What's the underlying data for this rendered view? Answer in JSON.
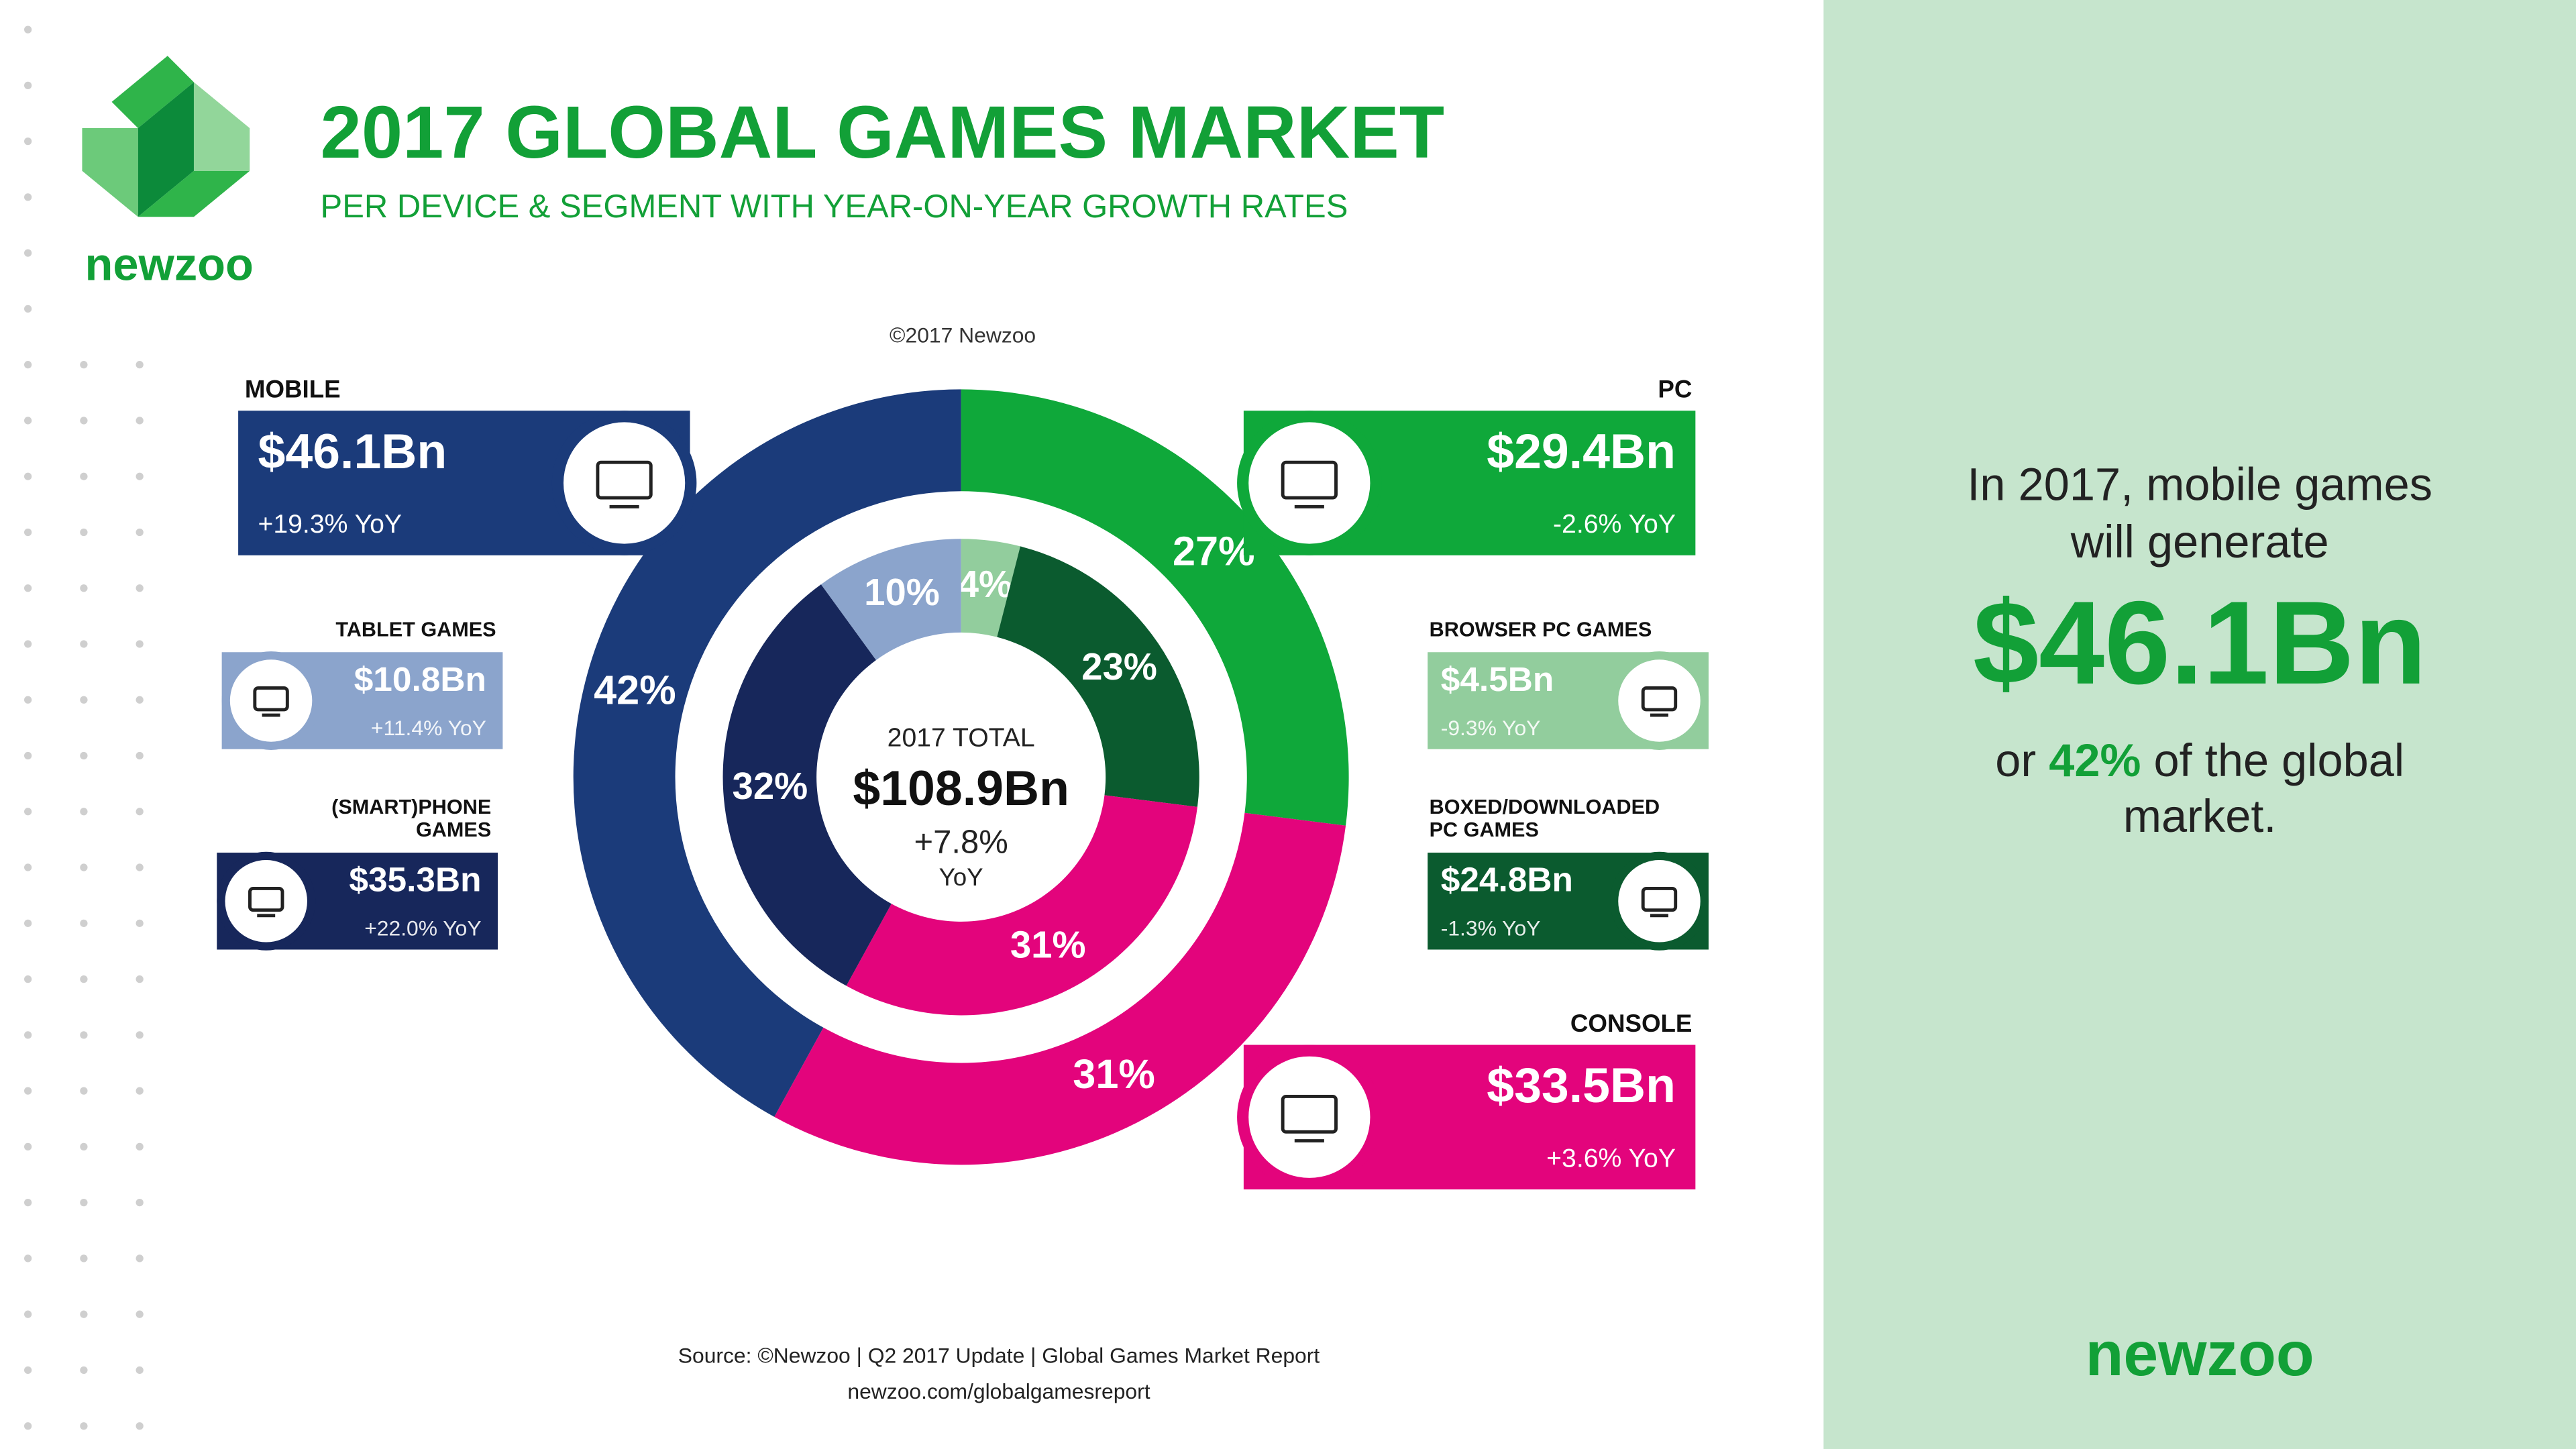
{
  "logo": "newzoo",
  "chart_data": {
    "type": "donut",
    "title": "2017 GLOBAL GAMES MARKET",
    "subtitle": "PER DEVICE & SEGMENT WITH YEAR-ON-YEAR GROWTH RATES",
    "copyright": "©2017 Newzoo",
    "center": {
      "label": "2017 TOTAL",
      "amount": "$108.9Bn",
      "growth": "+7.8%",
      "unit": "YoY"
    },
    "rings": [
      {
        "categories": [
          "PC",
          "CONSOLE",
          "MOBILE"
        ],
        "values": [
          27,
          31,
          42
        ],
        "value_labels": [
          "27%",
          "31%",
          "42%"
        ],
        "colors": [
          "#0fa83a",
          "#e3047c",
          "#1b3b7a"
        ],
        "amounts": [
          "$29.4Bn",
          "$33.5Bn",
          "$46.1Bn"
        ],
        "growth": [
          "-2.6% YoY",
          "+3.6% YoY",
          "+19.3% YoY"
        ]
      },
      {
        "categories": [
          "BROWSER PC GAMES",
          [
            "BOXED/DOWNLOADED",
            "PC GAMES"
          ],
          null,
          [
            " (SMART)PHONE",
            "GAMES"
          ],
          "TABLET GAMES"
        ],
        "values": [
          4,
          23,
          31,
          32,
          10
        ],
        "value_labels": [
          "4%",
          "23%",
          "31%",
          "32%",
          "10%"
        ],
        "colors": [
          "#92cd9d",
          "#0b5b2f",
          "#e3047c",
          "#17275b",
          "#8ba4cc"
        ],
        "amounts": [
          "$4.5Bn",
          "$24.8Bn",
          null,
          "$35.3Bn",
          "$10.8Bn"
        ],
        "growth": [
          "-9.3% YoY",
          "-1.3% YoY",
          null,
          "+22.0% YoY",
          "+11.4% YoY"
        ]
      }
    ]
  },
  "side_panel": {
    "line1": "In 2017, mobile games",
    "line2": "will generate",
    "amount": "$46.1Bn",
    "pre": "or",
    "highlight": "42%",
    "post": "of the global",
    "line5": "market.",
    "logo": "newzoo"
  },
  "footer": {
    "source": "Source: ©Newzoo | Q2 2017 Update | Global Games Market Report",
    "url": "newzoo.com/globalgamesreport"
  }
}
